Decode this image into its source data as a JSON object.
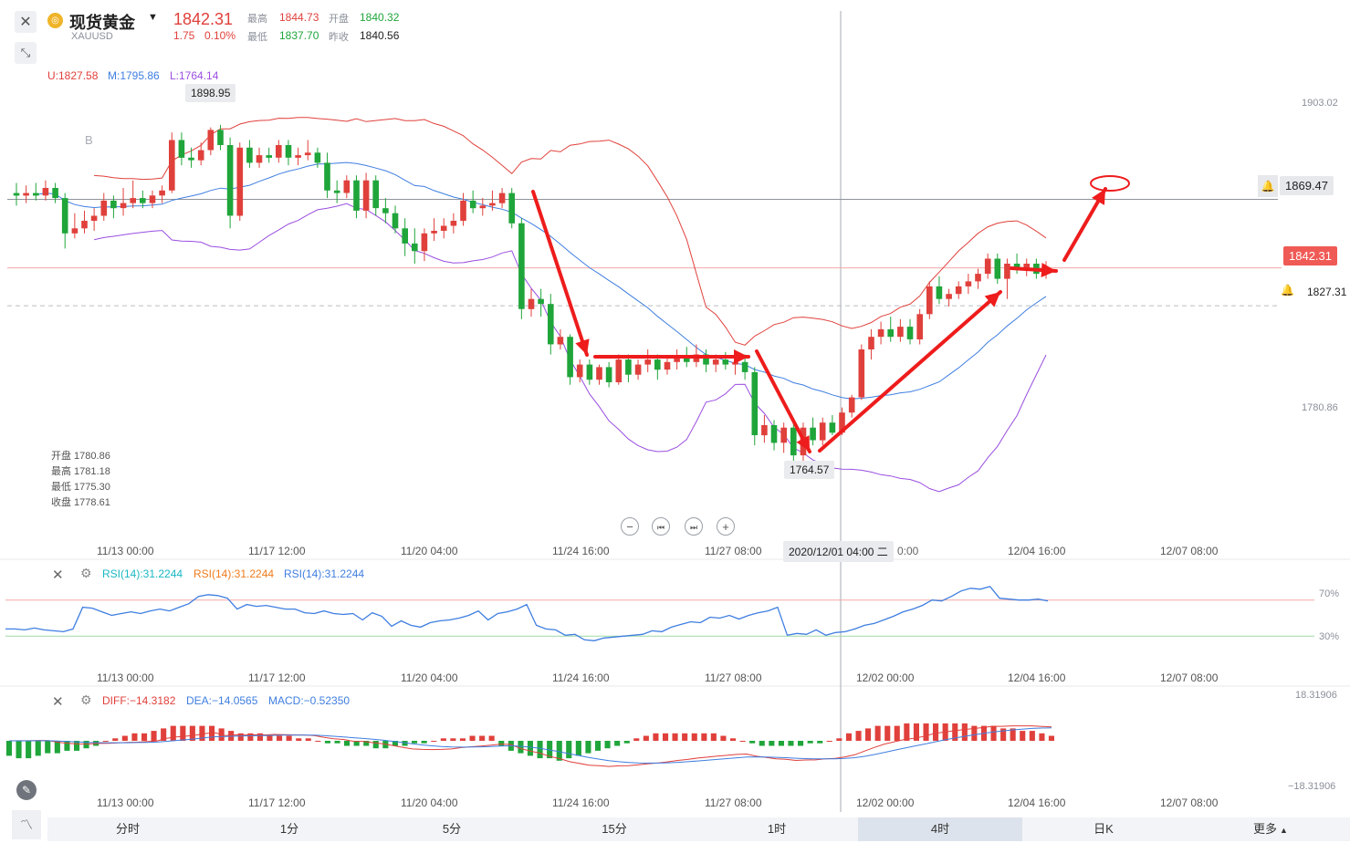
{
  "header": {
    "close_icon": "close-x-icon",
    "collapse_icon": "collapse-diagonal-icon",
    "logo_icon": "gold-coin-icon",
    "title": "现货黄金",
    "dropdown_icon": "caret-down-icon",
    "symbol": "XAUUSD",
    "price": "1842.31",
    "change": "1.75",
    "change_pct": "0.10%",
    "high_label": "最高",
    "high": "1844.73",
    "open_label": "开盘",
    "open": "1840.32",
    "low_label": "最低",
    "low": "1837.70",
    "prevclose_label": "昨收",
    "prevclose": "1840.56"
  },
  "boll_legend": {
    "u": "U:1827.58",
    "m": "M:1795.86",
    "l": "L:1764.14"
  },
  "ohlc_box": {
    "open": "开盘 1780.86",
    "high": "最高 1781.18",
    "low": "最低 1775.30",
    "close": "收盘 1778.61"
  },
  "main_axis": {
    "top": "1903.02",
    "bottom": "1780.86"
  },
  "price_tags": {
    "hline": "1869.47",
    "current": "1842.31",
    "dashed": "1827.31"
  },
  "annotations": {
    "max": "1898.95",
    "min": "1764.57",
    "marker": "B"
  },
  "time_axis": [
    "11/13 00:00",
    "11/17 12:00",
    "11/20 04:00",
    "11/24 16:00",
    "11/27 08:00",
    "12/02 00:00",
    "12/04 16:00",
    "12/07 08:00"
  ],
  "crosshair_time": "2020/12/01 04:00 二",
  "crosshair_time_main_tail": "0:00",
  "rsi": {
    "l1": "RSI(14):31.2244",
    "l2": "RSI(14):31.2244",
    "l3": "RSI(14):31.2244",
    "lvl_high": "70%",
    "lvl_low": "30%"
  },
  "macd": {
    "diff": "DIFF:−14.3182",
    "dea": "DEA:−14.0565",
    "macd": "MACD:−0.52350",
    "top": "18.31906",
    "bottom": "−18.31906"
  },
  "timeframes": [
    "分时",
    "1分",
    "5分",
    "15分",
    "1时",
    "4时",
    "日K",
    "更多"
  ],
  "active_timeframe": "4时",
  "colors": {
    "up": "#e0403b",
    "down": "#1fa53a",
    "mid": "#3f7ee0",
    "lower": "#9a4ee0",
    "arrow": "#ee1c1c"
  },
  "chart_data": [
    {
      "type": "candlestick",
      "title": "XAUUSD 4H",
      "indicator": "BOLL",
      "ylim": [
        1746,
        1925
      ],
      "points": [
        {
          "x": "11/11 16:00",
          "o": 1872,
          "h": 1876,
          "l": 1867,
          "c": 1871
        },
        {
          "x": "11/11 20:00",
          "o": 1871,
          "h": 1875,
          "l": 1868,
          "c": 1872
        },
        {
          "x": "11/12 00:00",
          "o": 1872,
          "h": 1876,
          "l": 1869,
          "c": 1871
        },
        {
          "x": "11/12 04:00",
          "o": 1871,
          "h": 1877,
          "l": 1869,
          "c": 1874
        },
        {
          "x": "11/12 08:00",
          "o": 1874,
          "h": 1876,
          "l": 1868,
          "c": 1870
        },
        {
          "x": "11/12 12:00",
          "o": 1870,
          "h": 1872,
          "l": 1850,
          "c": 1856
        },
        {
          "x": "11/12 16:00",
          "o": 1856,
          "h": 1864,
          "l": 1854,
          "c": 1858
        },
        {
          "x": "11/12 20:00",
          "o": 1858,
          "h": 1865,
          "l": 1856,
          "c": 1861
        },
        {
          "x": "11/13 00:00",
          "o": 1861,
          "h": 1866,
          "l": 1857,
          "c": 1863
        },
        {
          "x": "11/13 04:00",
          "o": 1863,
          "h": 1872,
          "l": 1861,
          "c": 1869
        },
        {
          "x": "11/13 08:00",
          "o": 1869,
          "h": 1871,
          "l": 1862,
          "c": 1866
        },
        {
          "x": "11/13 12:00",
          "o": 1866,
          "h": 1874,
          "l": 1863,
          "c": 1868
        },
        {
          "x": "11/13 16:00",
          "o": 1868,
          "h": 1877,
          "l": 1866,
          "c": 1870
        },
        {
          "x": "11/13 20:00",
          "o": 1870,
          "h": 1873,
          "l": 1866,
          "c": 1868
        },
        {
          "x": "11/16 00:00",
          "o": 1868,
          "h": 1873,
          "l": 1866,
          "c": 1871
        },
        {
          "x": "11/16 04:00",
          "o": 1871,
          "h": 1875,
          "l": 1868,
          "c": 1873
        },
        {
          "x": "11/16 08:00",
          "o": 1873,
          "h": 1896,
          "l": 1872,
          "c": 1893
        },
        {
          "x": "11/16 12:00",
          "o": 1893,
          "h": 1896,
          "l": 1883,
          "c": 1886
        },
        {
          "x": "11/16 16:00",
          "o": 1886,
          "h": 1890,
          "l": 1882,
          "c": 1885
        },
        {
          "x": "11/16 20:00",
          "o": 1885,
          "h": 1892,
          "l": 1883,
          "c": 1889
        },
        {
          "x": "11/17 00:00",
          "o": 1889,
          "h": 1898,
          "l": 1887,
          "c": 1897
        },
        {
          "x": "11/17 04:00",
          "o": 1897,
          "h": 1899,
          "l": 1889,
          "c": 1891
        },
        {
          "x": "11/17 08:00",
          "o": 1891,
          "h": 1894,
          "l": 1858,
          "c": 1863
        },
        {
          "x": "11/17 12:00",
          "o": 1863,
          "h": 1892,
          "l": 1861,
          "c": 1890
        },
        {
          "x": "11/17 16:00",
          "o": 1890,
          "h": 1893,
          "l": 1882,
          "c": 1884
        },
        {
          "x": "11/17 20:00",
          "o": 1884,
          "h": 1890,
          "l": 1882,
          "c": 1887
        },
        {
          "x": "11/18 00:00",
          "o": 1887,
          "h": 1890,
          "l": 1884,
          "c": 1886
        },
        {
          "x": "11/18 04:00",
          "o": 1886,
          "h": 1893,
          "l": 1884,
          "c": 1891
        },
        {
          "x": "11/18 08:00",
          "o": 1891,
          "h": 1893,
          "l": 1883,
          "c": 1886
        },
        {
          "x": "11/18 12:00",
          "o": 1886,
          "h": 1890,
          "l": 1883,
          "c": 1887
        },
        {
          "x": "11/18 16:00",
          "o": 1887,
          "h": 1893,
          "l": 1885,
          "c": 1888
        },
        {
          "x": "11/18 20:00",
          "o": 1888,
          "h": 1890,
          "l": 1882,
          "c": 1884
        },
        {
          "x": "11/19 00:00",
          "o": 1884,
          "h": 1888,
          "l": 1870,
          "c": 1873
        },
        {
          "x": "11/19 04:00",
          "o": 1873,
          "h": 1877,
          "l": 1868,
          "c": 1872
        },
        {
          "x": "11/19 08:00",
          "o": 1872,
          "h": 1879,
          "l": 1870,
          "c": 1877
        },
        {
          "x": "11/19 12:00",
          "o": 1877,
          "h": 1879,
          "l": 1862,
          "c": 1865
        },
        {
          "x": "11/19 16:00",
          "o": 1865,
          "h": 1880,
          "l": 1862,
          "c": 1877
        },
        {
          "x": "11/19 20:00",
          "o": 1877,
          "h": 1879,
          "l": 1863,
          "c": 1866
        },
        {
          "x": "11/20 00:00",
          "o": 1866,
          "h": 1870,
          "l": 1860,
          "c": 1864
        },
        {
          "x": "11/20 04:00",
          "o": 1864,
          "h": 1867,
          "l": 1856,
          "c": 1858
        },
        {
          "x": "11/20 08:00",
          "o": 1858,
          "h": 1862,
          "l": 1847,
          "c": 1852
        },
        {
          "x": "11/20 12:00",
          "o": 1852,
          "h": 1858,
          "l": 1844,
          "c": 1849
        },
        {
          "x": "11/20 16:00",
          "o": 1849,
          "h": 1858,
          "l": 1845,
          "c": 1856
        },
        {
          "x": "11/20 20:00",
          "o": 1856,
          "h": 1862,
          "l": 1853,
          "c": 1857
        },
        {
          "x": "11/23 00:00",
          "o": 1857,
          "h": 1862,
          "l": 1854,
          "c": 1859
        },
        {
          "x": "11/23 04:00",
          "o": 1859,
          "h": 1864,
          "l": 1856,
          "c": 1861
        },
        {
          "x": "11/23 08:00",
          "o": 1861,
          "h": 1872,
          "l": 1859,
          "c": 1869
        },
        {
          "x": "11/23 12:00",
          "o": 1869,
          "h": 1873,
          "l": 1864,
          "c": 1866
        },
        {
          "x": "11/23 16:00",
          "o": 1866,
          "h": 1870,
          "l": 1863,
          "c": 1867
        },
        {
          "x": "11/23 20:00",
          "o": 1867,
          "h": 1873,
          "l": 1865,
          "c": 1868
        },
        {
          "x": "11/24 00:00",
          "o": 1868,
          "h": 1874,
          "l": 1866,
          "c": 1872
        },
        {
          "x": "11/24 04:00",
          "o": 1872,
          "h": 1874,
          "l": 1858,
          "c": 1860
        },
        {
          "x": "11/24 08:00",
          "o": 1860,
          "h": 1862,
          "l": 1822,
          "c": 1826
        },
        {
          "x": "11/24 12:00",
          "o": 1826,
          "h": 1834,
          "l": 1823,
          "c": 1830
        },
        {
          "x": "11/24 16:00",
          "o": 1830,
          "h": 1834,
          "l": 1823,
          "c": 1828
        },
        {
          "x": "11/24 20:00",
          "o": 1828,
          "h": 1832,
          "l": 1808,
          "c": 1812
        },
        {
          "x": "11/25 00:00",
          "o": 1812,
          "h": 1818,
          "l": 1810,
          "c": 1815
        },
        {
          "x": "11/25 04:00",
          "o": 1815,
          "h": 1816,
          "l": 1796,
          "c": 1799
        },
        {
          "x": "11/25 08:00",
          "o": 1799,
          "h": 1806,
          "l": 1797,
          "c": 1804
        },
        {
          "x": "11/25 12:00",
          "o": 1804,
          "h": 1806,
          "l": 1796,
          "c": 1798
        },
        {
          "x": "11/25 16:00",
          "o": 1798,
          "h": 1804,
          "l": 1796,
          "c": 1803
        },
        {
          "x": "11/25 20:00",
          "o": 1803,
          "h": 1805,
          "l": 1795,
          "c": 1797
        },
        {
          "x": "11/26 00:00",
          "o": 1797,
          "h": 1808,
          "l": 1796,
          "c": 1806
        },
        {
          "x": "11/26 04:00",
          "o": 1806,
          "h": 1808,
          "l": 1797,
          "c": 1800
        },
        {
          "x": "11/26 08:00",
          "o": 1800,
          "h": 1806,
          "l": 1798,
          "c": 1804
        },
        {
          "x": "11/26 12:00",
          "o": 1804,
          "h": 1810,
          "l": 1801,
          "c": 1806
        },
        {
          "x": "11/26 16:00",
          "o": 1806,
          "h": 1808,
          "l": 1798,
          "c": 1802
        },
        {
          "x": "11/26 20:00",
          "o": 1802,
          "h": 1807,
          "l": 1800,
          "c": 1805
        },
        {
          "x": "11/27 00:00",
          "o": 1805,
          "h": 1810,
          "l": 1802,
          "c": 1807
        },
        {
          "x": "11/27 04:00",
          "o": 1807,
          "h": 1811,
          "l": 1803,
          "c": 1805
        },
        {
          "x": "11/27 08:00",
          "o": 1805,
          "h": 1812,
          "l": 1803,
          "c": 1808
        },
        {
          "x": "11/27 12:00",
          "o": 1808,
          "h": 1810,
          "l": 1801,
          "c": 1804
        },
        {
          "x": "11/27 16:00",
          "o": 1804,
          "h": 1808,
          "l": 1801,
          "c": 1806
        },
        {
          "x": "11/27 20:00",
          "o": 1806,
          "h": 1809,
          "l": 1802,
          "c": 1804
        },
        {
          "x": "11/30 00:00",
          "o": 1804,
          "h": 1807,
          "l": 1800,
          "c": 1805
        },
        {
          "x": "11/30 04:00",
          "o": 1805,
          "h": 1808,
          "l": 1798,
          "c": 1801
        },
        {
          "x": "11/30 08:00",
          "o": 1801,
          "h": 1803,
          "l": 1772,
          "c": 1776
        },
        {
          "x": "11/30 12:00",
          "o": 1776,
          "h": 1784,
          "l": 1773,
          "c": 1780
        },
        {
          "x": "11/30 16:00",
          "o": 1780,
          "h": 1782,
          "l": 1770,
          "c": 1773
        },
        {
          "x": "11/30 20:00",
          "o": 1773,
          "h": 1781,
          "l": 1769,
          "c": 1779
        },
        {
          "x": "12/01 00:00",
          "o": 1779,
          "h": 1782,
          "l": 1765,
          "c": 1768
        },
        {
          "x": "12/01 04:00",
          "o": 1768,
          "h": 1781,
          "l": 1765,
          "c": 1779
        },
        {
          "x": "12/01 08:00",
          "o": 1779,
          "h": 1783,
          "l": 1772,
          "c": 1774
        },
        {
          "x": "12/01 12:00",
          "o": 1774,
          "h": 1783,
          "l": 1772,
          "c": 1781
        },
        {
          "x": "12/01 16:00",
          "o": 1781,
          "h": 1784,
          "l": 1776,
          "c": 1777
        },
        {
          "x": "12/01 20:00",
          "o": 1777,
          "h": 1787,
          "l": 1776,
          "c": 1785
        },
        {
          "x": "12/02 00:00",
          "o": 1785,
          "h": 1792,
          "l": 1783,
          "c": 1791
        },
        {
          "x": "12/02 04:00",
          "o": 1791,
          "h": 1812,
          "l": 1790,
          "c": 1810
        },
        {
          "x": "12/02 08:00",
          "o": 1810,
          "h": 1818,
          "l": 1806,
          "c": 1815
        },
        {
          "x": "12/02 12:00",
          "o": 1815,
          "h": 1821,
          "l": 1812,
          "c": 1818
        },
        {
          "x": "12/02 16:00",
          "o": 1818,
          "h": 1823,
          "l": 1813,
          "c": 1815
        },
        {
          "x": "12/02 20:00",
          "o": 1815,
          "h": 1822,
          "l": 1813,
          "c": 1819
        },
        {
          "x": "12/03 00:00",
          "o": 1819,
          "h": 1822,
          "l": 1812,
          "c": 1814
        },
        {
          "x": "12/03 04:00",
          "o": 1814,
          "h": 1826,
          "l": 1812,
          "c": 1824
        },
        {
          "x": "12/03 08:00",
          "o": 1824,
          "h": 1837,
          "l": 1822,
          "c": 1835
        },
        {
          "x": "12/03 12:00",
          "o": 1835,
          "h": 1839,
          "l": 1828,
          "c": 1830
        },
        {
          "x": "12/03 16:00",
          "o": 1830,
          "h": 1834,
          "l": 1827,
          "c": 1832
        },
        {
          "x": "12/03 20:00",
          "o": 1832,
          "h": 1837,
          "l": 1830,
          "c": 1835
        },
        {
          "x": "12/04 00:00",
          "o": 1835,
          "h": 1840,
          "l": 1832,
          "c": 1837
        },
        {
          "x": "12/04 04:00",
          "o": 1837,
          "h": 1842,
          "l": 1834,
          "c": 1840
        },
        {
          "x": "12/04 08:00",
          "o": 1840,
          "h": 1848,
          "l": 1838,
          "c": 1846
        },
        {
          "x": "12/04 12:00",
          "o": 1846,
          "h": 1848,
          "l": 1836,
          "c": 1838
        },
        {
          "x": "12/04 16:00",
          "o": 1838,
          "h": 1846,
          "l": 1830,
          "c": 1844
        },
        {
          "x": "12/04 20:00",
          "o": 1844,
          "h": 1848,
          "l": 1840,
          "c": 1842
        },
        {
          "x": "12/05 00:00",
          "o": 1842,
          "h": 1846,
          "l": 1839,
          "c": 1844
        },
        {
          "x": "12/05 04:00",
          "o": 1844,
          "h": 1846,
          "l": 1838,
          "c": 1840
        },
        {
          "x": "12/05 08:00",
          "o": 1840,
          "h": 1845,
          "l": 1838,
          "c": 1842
        }
      ],
      "hline": 1869.47,
      "current": 1842.31,
      "dashed_level": 1827.31
    },
    {
      "type": "line",
      "title": "RSI(14)",
      "ylim": [
        0,
        100
      ],
      "levels": [
        70,
        30
      ],
      "values": [
        38,
        38,
        37,
        39,
        37,
        36,
        35,
        38,
        62,
        61,
        57,
        53,
        55,
        57,
        55,
        58,
        60,
        58,
        62,
        66,
        74,
        76,
        75,
        72,
        60,
        65,
        63,
        64,
        62,
        60,
        60,
        56,
        55,
        58,
        55,
        54,
        55,
        48,
        56,
        52,
        41,
        47,
        42,
        40,
        45,
        47,
        48,
        50,
        53,
        58,
        48,
        55,
        57,
        60,
        65,
        42,
        38,
        37,
        31,
        32,
        26,
        25,
        28,
        29,
        30,
        31,
        32,
        36,
        35,
        40,
        43,
        46,
        45,
        51,
        50,
        53,
        49,
        53,
        56,
        58,
        62,
        31,
        33,
        32,
        37,
        31,
        34,
        35,
        38,
        42,
        44,
        48,
        52,
        57,
        60,
        64,
        70,
        69,
        74,
        80,
        83,
        82,
        85,
        72,
        71,
        70,
        70,
        71,
        69
      ]
    },
    {
      "type": "bar+line",
      "title": "MACD",
      "ylim": [
        -18.32,
        18.32
      ],
      "macd_bars": [
        -6,
        -7,
        -7,
        -6,
        -5,
        -5,
        -4,
        -4,
        -3,
        -2,
        0,
        1,
        2,
        3,
        3,
        4,
        5,
        6,
        6,
        6,
        6,
        6,
        5,
        4,
        3,
        3,
        3,
        2,
        2,
        2,
        1,
        1,
        0,
        -1,
        -1,
        -2,
        -2,
        -2,
        -3,
        -3,
        -2,
        -2,
        -1,
        -1,
        0,
        1,
        1,
        1,
        2,
        2,
        2,
        -2,
        -4,
        -5,
        -6,
        -7,
        -7,
        -8,
        -7,
        -6,
        -5,
        -4,
        -3,
        -2,
        -1,
        1,
        2,
        3,
        3,
        3,
        3,
        3,
        3,
        3,
        2,
        1,
        0,
        -1,
        -2,
        -2,
        -2,
        -2,
        -2,
        -1,
        -1,
        0,
        1,
        3,
        4,
        5,
        6,
        6,
        6,
        7,
        7,
        7,
        7,
        7,
        7,
        7,
        6,
        6,
        6,
        5,
        5,
        4,
        4,
        3,
        2
      ]
    }
  ]
}
